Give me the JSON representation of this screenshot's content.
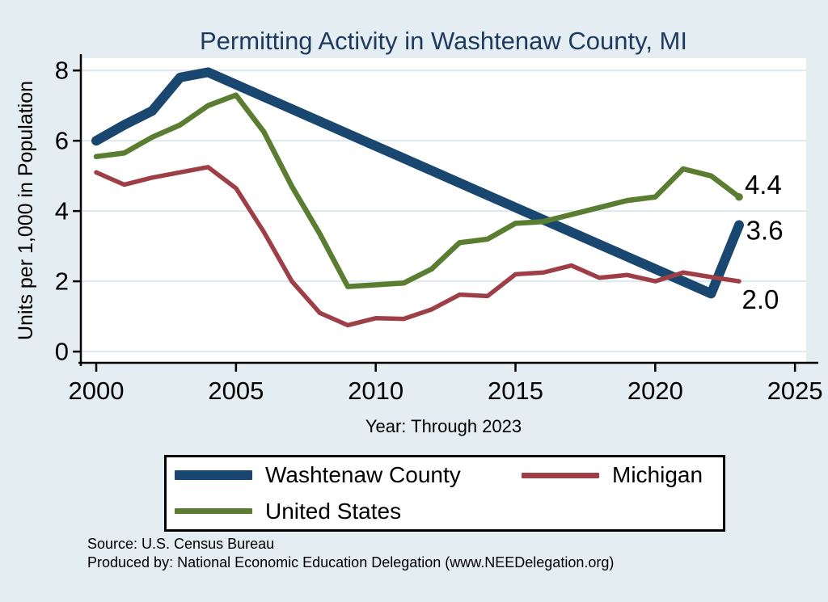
{
  "page": {
    "background_color": "#e3edf2",
    "plot_background_color": "#ffffff"
  },
  "header": {
    "title": "Permitting Activity in Washtenaw County, MI",
    "title_color": "#1e3a5e"
  },
  "chart_data": {
    "type": "line",
    "title": "Permitting Activity in Washtenaw County, MI",
    "xlabel": "Year: Through 2023",
    "ylabel": "Units per 1,000 in Population",
    "grid": true,
    "gridline_color": "#dce8ee",
    "legend_position": "bottom",
    "xticks": [
      2000,
      2005,
      2010,
      2015,
      2020,
      2025
    ],
    "yticks": [
      0,
      2,
      4,
      6,
      8
    ],
    "xlim": [
      1999.45,
      2025.4
    ],
    "ylim": [
      -0.32,
      8.35
    ],
    "x": [
      2000,
      2001,
      2002,
      2003,
      2004,
      2005,
      2006,
      2007,
      2008,
      2009,
      2010,
      2011,
      2012,
      2013,
      2014,
      2015,
      2016,
      2017,
      2018,
      2019,
      2020,
      2021,
      2022,
      2023
    ],
    "series": [
      {
        "name": "Washtenaw County",
        "color": "#1a476f",
        "line_width": 12,
        "end_marker": false,
        "values": [
          6.0,
          6.45,
          6.85,
          7.8,
          7.95,
          7.6,
          7.25,
          6.9,
          6.55,
          6.2,
          5.85,
          5.5,
          5.15,
          4.8,
          4.45,
          4.1,
          3.75,
          3.4,
          3.05,
          2.7,
          2.35,
          2.0,
          1.65,
          3.6
        ]
      },
      {
        "name": "Michigan",
        "color": "#9e3f48",
        "line_width": 5.5,
        "end_marker": false,
        "values": [
          5.1,
          4.75,
          4.95,
          5.1,
          5.25,
          4.65,
          3.4,
          2.0,
          1.1,
          0.75,
          0.95,
          0.93,
          1.2,
          1.62,
          1.58,
          2.2,
          2.25,
          2.45,
          2.1,
          2.18,
          2.0,
          2.25,
          2.12,
          2.0
        ]
      },
      {
        "name": "United States",
        "color": "#5a7d31",
        "line_width": 6.5,
        "end_marker": true,
        "values": [
          5.55,
          5.65,
          6.1,
          6.45,
          7.0,
          7.3,
          6.25,
          4.7,
          3.35,
          1.85,
          1.9,
          1.95,
          2.35,
          3.1,
          3.2,
          3.65,
          3.7,
          3.9,
          4.1,
          4.3,
          4.4,
          5.2,
          5.0,
          4.4
        ]
      }
    ],
    "end_labels": [
      {
        "text": "4.4",
        "x": 2023.2,
        "y": 4.75
      },
      {
        "text": "3.6",
        "x": 2023.25,
        "y": 3.45
      },
      {
        "text": "2.0",
        "x": 2023.1,
        "y": 1.48
      }
    ]
  },
  "footer": {
    "source_line1": "Source: U.S. Census Bureau",
    "source_line2": "Produced by: National Economic Education Delegation (www.NEEDelegation.org)"
  }
}
